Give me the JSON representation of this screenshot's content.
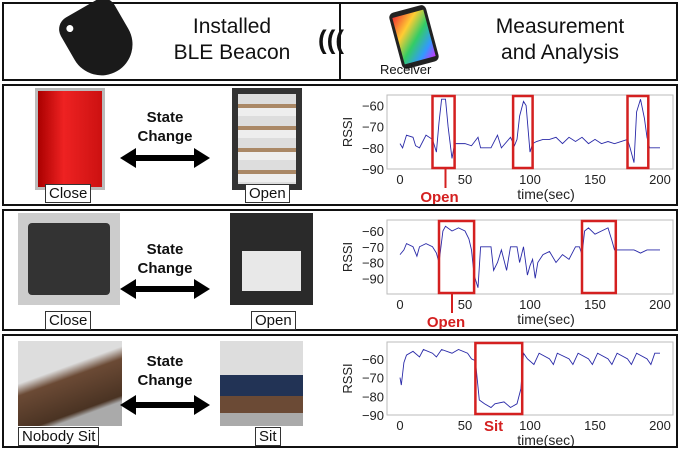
{
  "header": {
    "left_title": "Installed\nBLE Beacon",
    "right_title": "Measurement\nand Analysis",
    "receiver_label": "Receiver"
  },
  "rows": [
    {
      "left_label": "Close",
      "right_label": "Open",
      "state_change": "State\nChange",
      "event_label": "Open"
    },
    {
      "left_label": "Close",
      "right_label": "Open",
      "state_change": "State\nChange",
      "event_label": "Open"
    },
    {
      "left_label": "Nobody Sit",
      "right_label": "Sit",
      "state_change": "State\nChange",
      "event_label": "Sit"
    }
  ],
  "colors": {
    "series": "#2a2aa8",
    "highlight": "#d42020",
    "fridge": "#d41a1a"
  },
  "chart_data": [
    {
      "type": "line",
      "xlabel": "time(sec)",
      "ylabel": "RSSI",
      "xlim": [
        -10,
        210
      ],
      "ylim": [
        -90,
        -55
      ],
      "xticks": [
        0,
        50,
        100,
        150,
        200
      ],
      "yticks": [
        -60,
        -70,
        -80,
        -90
      ],
      "highlights": [
        [
          25,
          42
        ],
        [
          87,
          102
        ],
        [
          175,
          191
        ]
      ],
      "annotation": {
        "text": "Open",
        "x": 35
      },
      "points": [
        [
          0,
          -78
        ],
        [
          2,
          -80
        ],
        [
          5,
          -74
        ],
        [
          10,
          -75
        ],
        [
          12,
          -79
        ],
        [
          15,
          -80
        ],
        [
          20,
          -74
        ],
        [
          25,
          -76
        ],
        [
          28,
          -82
        ],
        [
          30,
          -68
        ],
        [
          32,
          -57
        ],
        [
          35,
          -57
        ],
        [
          37,
          -70
        ],
        [
          40,
          -85
        ],
        [
          42,
          -78
        ],
        [
          50,
          -78
        ],
        [
          55,
          -79
        ],
        [
          60,
          -75
        ],
        [
          62,
          -80
        ],
        [
          70,
          -80
        ],
        [
          75,
          -74
        ],
        [
          78,
          -80
        ],
        [
          85,
          -75
        ],
        [
          88,
          -79
        ],
        [
          90,
          -76
        ],
        [
          92,
          -65
        ],
        [
          95,
          -58
        ],
        [
          97,
          -60
        ],
        [
          100,
          -82
        ],
        [
          102,
          -78
        ],
        [
          105,
          -77
        ],
        [
          110,
          -76
        ],
        [
          115,
          -76
        ],
        [
          120,
          -75
        ],
        [
          125,
          -78
        ],
        [
          130,
          -75
        ],
        [
          135,
          -77
        ],
        [
          140,
          -75
        ],
        [
          145,
          -78
        ],
        [
          150,
          -76
        ],
        [
          155,
          -78
        ],
        [
          160,
          -77
        ],
        [
          165,
          -78
        ],
        [
          170,
          -77
        ],
        [
          175,
          -76
        ],
        [
          177,
          -80
        ],
        [
          180,
          -87
        ],
        [
          182,
          -63
        ],
        [
          185,
          -57
        ],
        [
          188,
          -66
        ],
        [
          190,
          -75
        ],
        [
          192,
          -80
        ],
        [
          195,
          -80
        ],
        [
          200,
          -80
        ]
      ]
    },
    {
      "type": "line",
      "xlabel": "time(sec)",
      "ylabel": "RSSI",
      "xlim": [
        -10,
        210
      ],
      "ylim": [
        -100,
        -53
      ],
      "xticks": [
        0,
        50,
        100,
        150,
        200
      ],
      "yticks": [
        -60,
        -70,
        -80,
        -90
      ],
      "highlights": [
        [
          30,
          57
        ],
        [
          140,
          166
        ]
      ],
      "annotation": {
        "text": "Open",
        "x": 40
      },
      "points": [
        [
          0,
          -75
        ],
        [
          3,
          -72
        ],
        [
          5,
          -68
        ],
        [
          10,
          -70
        ],
        [
          13,
          -76
        ],
        [
          15,
          -70
        ],
        [
          20,
          -68
        ],
        [
          25,
          -70
        ],
        [
          28,
          -74
        ],
        [
          30,
          -80
        ],
        [
          33,
          -60
        ],
        [
          35,
          -57
        ],
        [
          40,
          -60
        ],
        [
          45,
          -58
        ],
        [
          50,
          -60
        ],
        [
          53,
          -65
        ],
        [
          55,
          -72
        ],
        [
          57,
          -88
        ],
        [
          60,
          -96
        ],
        [
          62,
          -70
        ],
        [
          70,
          -70
        ],
        [
          72,
          -85
        ],
        [
          75,
          -80
        ],
        [
          78,
          -72
        ],
        [
          82,
          -85
        ],
        [
          85,
          -70
        ],
        [
          90,
          -70
        ],
        [
          92,
          -80
        ],
        [
          95,
          -70
        ],
        [
          98,
          -88
        ],
        [
          100,
          -82
        ],
        [
          102,
          -78
        ],
        [
          104,
          -90
        ],
        [
          106,
          -80
        ],
        [
          110,
          -75
        ],
        [
          115,
          -73
        ],
        [
          120,
          -80
        ],
        [
          125,
          -75
        ],
        [
          130,
          -78
        ],
        [
          135,
          -70
        ],
        [
          138,
          -70
        ],
        [
          140,
          -75
        ],
        [
          142,
          -60
        ],
        [
          145,
          -58
        ],
        [
          150,
          -62
        ],
        [
          155,
          -60
        ],
        [
          160,
          -58
        ],
        [
          163,
          -66
        ],
        [
          165,
          -72
        ],
        [
          170,
          -72
        ],
        [
          180,
          -72
        ],
        [
          185,
          -74
        ],
        [
          190,
          -72
        ],
        [
          200,
          -72
        ]
      ]
    },
    {
      "type": "line",
      "xlabel": "time(sec)",
      "ylabel": "RSSI",
      "xlim": [
        -10,
        210
      ],
      "ylim": [
        -90,
        -51
      ],
      "xticks": [
        0,
        50,
        100,
        150,
        200
      ],
      "yticks": [
        -60,
        -70,
        -80,
        -90
      ],
      "highlights": [
        [
          58,
          94
        ]
      ],
      "annotation": {
        "text": "Sit",
        "x": 72
      },
      "points": [
        [
          0,
          -70
        ],
        [
          1,
          -74
        ],
        [
          3,
          -62
        ],
        [
          5,
          -58
        ],
        [
          10,
          -56
        ],
        [
          15,
          -59
        ],
        [
          18,
          -55
        ],
        [
          25,
          -57
        ],
        [
          28,
          -59
        ],
        [
          32,
          -55
        ],
        [
          40,
          -57
        ],
        [
          45,
          -55
        ],
        [
          52,
          -57
        ],
        [
          55,
          -60
        ],
        [
          58,
          -61
        ],
        [
          61,
          -82
        ],
        [
          65,
          -84
        ],
        [
          70,
          -86
        ],
        [
          73,
          -84
        ],
        [
          80,
          -83
        ],
        [
          85,
          -86
        ],
        [
          90,
          -84
        ],
        [
          93,
          -76
        ],
        [
          95,
          -57
        ],
        [
          98,
          -60
        ],
        [
          103,
          -63
        ],
        [
          107,
          -57
        ],
        [
          115,
          -60
        ],
        [
          118,
          -63
        ],
        [
          121,
          -57
        ],
        [
          130,
          -60
        ],
        [
          133,
          -63
        ],
        [
          137,
          -57
        ],
        [
          145,
          -60
        ],
        [
          148,
          -63
        ],
        [
          152,
          -57
        ],
        [
          160,
          -60
        ],
        [
          163,
          -63
        ],
        [
          167,
          -57
        ],
        [
          175,
          -60
        ],
        [
          178,
          -63
        ],
        [
          182,
          -57
        ],
        [
          190,
          -60
        ],
        [
          193,
          -63
        ],
        [
          196,
          -57
        ],
        [
          200,
          -57
        ]
      ]
    }
  ]
}
